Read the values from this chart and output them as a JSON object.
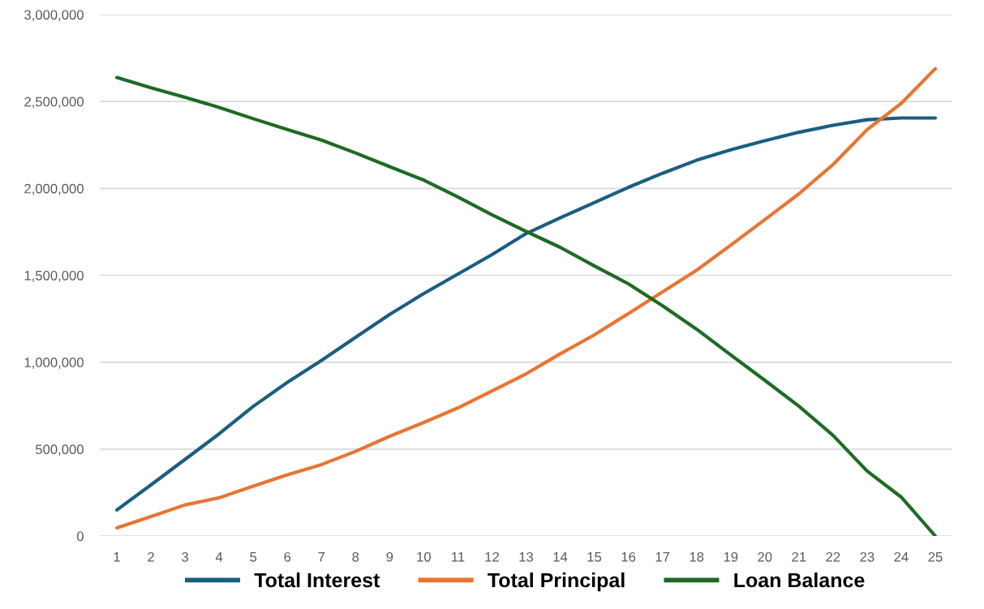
{
  "chart_data": {
    "type": "line",
    "categories": [
      "1",
      "2",
      "3",
      "4",
      "5",
      "6",
      "7",
      "8",
      "9",
      "10",
      "11",
      "12",
      "13",
      "14",
      "15",
      "16",
      "17",
      "18",
      "19",
      "20",
      "21",
      "22",
      "23",
      "24",
      "25"
    ],
    "series": [
      {
        "name": "Total Interest",
        "color": "#1a5e82",
        "values": [
          150000,
          294000,
          441000,
          588000,
          746000,
          884000,
          1010000,
          1143000,
          1275000,
          1395000,
          1507000,
          1619000,
          1740000,
          1831000,
          1918000,
          2006000,
          2087000,
          2162000,
          2222000,
          2274000,
          2323000,
          2363000,
          2395000,
          2405000,
          2405000
        ]
      },
      {
        "name": "Total Principal",
        "color": "#e97432",
        "values": [
          47000,
          112000,
          179000,
          220000,
          287000,
          352000,
          411000,
          487000,
          574000,
          653000,
          737000,
          835000,
          933000,
          1048000,
          1157000,
          1280000,
          1404000,
          1529000,
          1673000,
          1820000,
          1969000,
          2137000,
          2338000,
          2489000,
          2689000
        ]
      },
      {
        "name": "Loan Balance",
        "color": "#1d6b23",
        "values": [
          2638000,
          2579000,
          2524000,
          2466000,
          2401000,
          2339000,
          2278000,
          2204000,
          2125000,
          2048000,
          1951000,
          1848000,
          1752000,
          1661000,
          1554000,
          1451000,
          1325000,
          1190000,
          1042000,
          896000,
          747000,
          579000,
          374000,
          224000,
          0
        ]
      }
    ],
    "ylim": [
      0,
      3000000
    ],
    "yticks": [
      {
        "value": 0,
        "label": "0"
      },
      {
        "value": 500000,
        "label": "500,000"
      },
      {
        "value": 1000000,
        "label": "1,000,000"
      },
      {
        "value": 1500000,
        "label": "1,500,000"
      },
      {
        "value": 2000000,
        "label": "2,000,000"
      },
      {
        "value": 2500000,
        "label": "2,500,000"
      },
      {
        "value": 3000000,
        "label": "3,000,000"
      }
    ],
    "grid": "y",
    "legend": "bottom",
    "line_style": "solid"
  }
}
